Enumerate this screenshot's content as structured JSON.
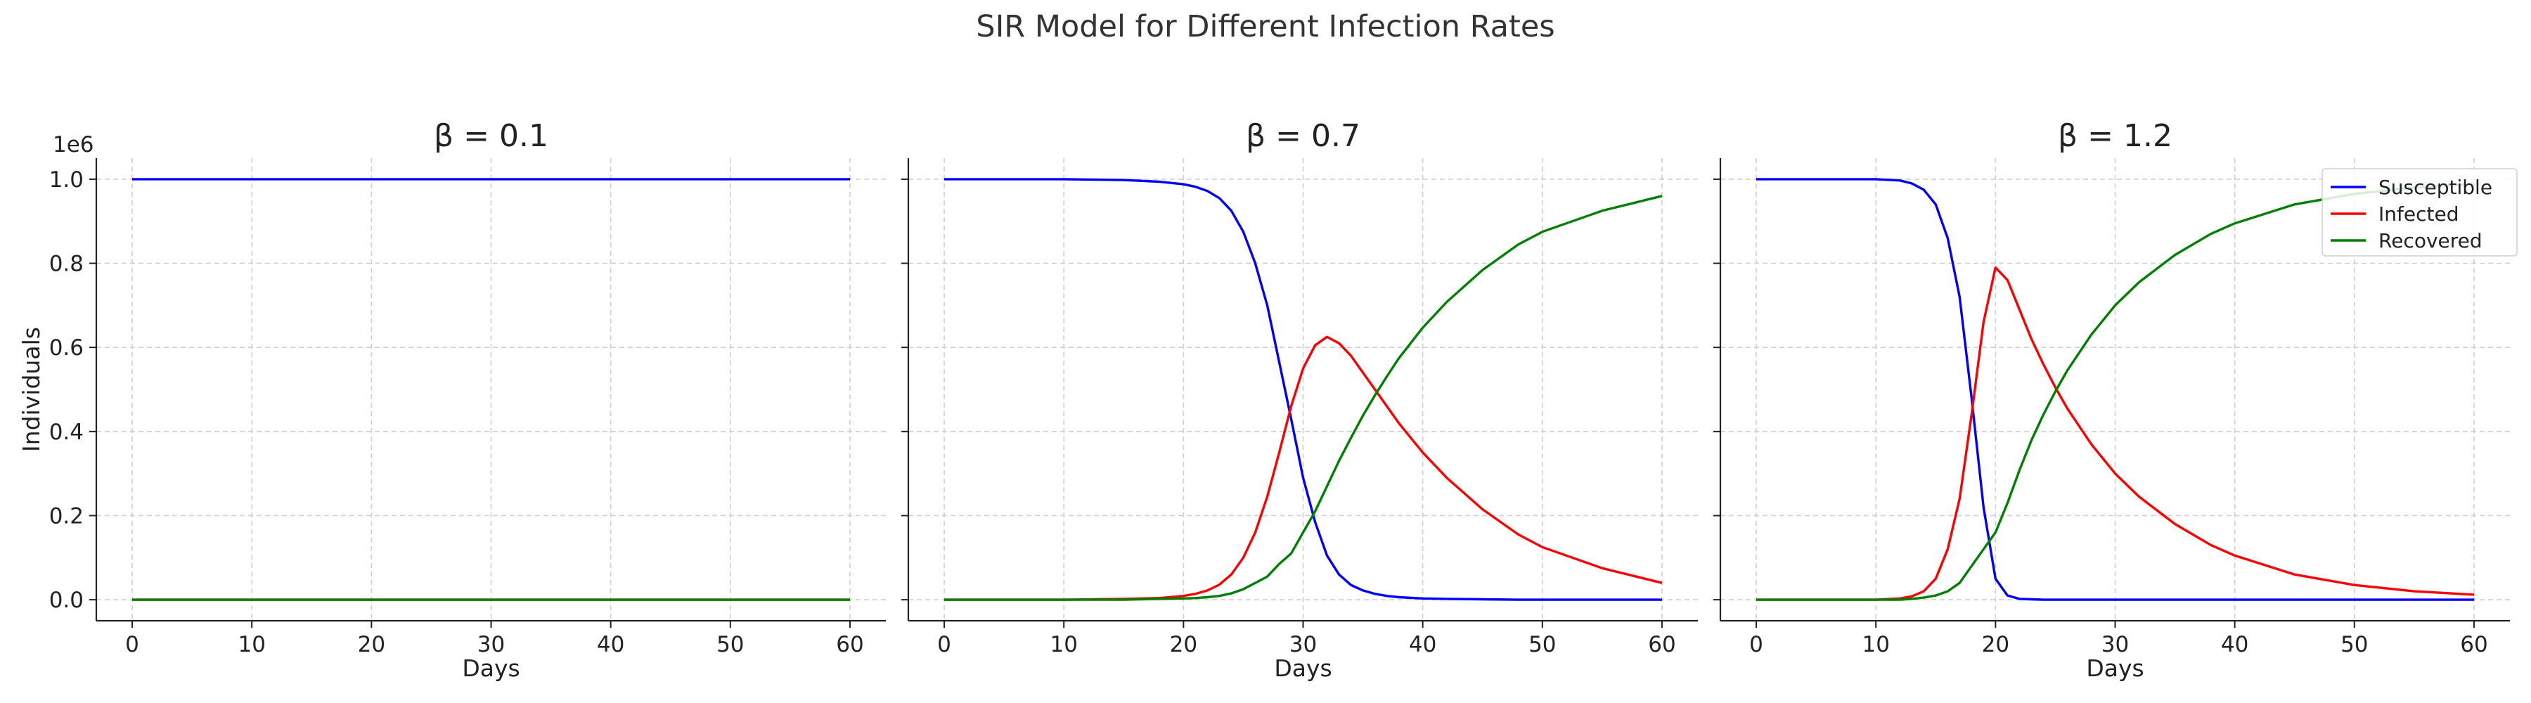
{
  "title": "SIR Model for Different Infection Rates",
  "y_scale_label": "1e6",
  "chart_data": {
    "type": "line",
    "title": "SIR Model for Different Infection Rates",
    "xlabel": "Days",
    "ylabel": "Individuals",
    "y_multiplier": "1e6",
    "xlim": [
      -3,
      63
    ],
    "ylim": [
      -0.05,
      1.05
    ],
    "xticks": [
      0,
      10,
      20,
      30,
      40,
      50,
      60
    ],
    "yticks": [
      0.0,
      0.2,
      0.4,
      0.6,
      0.8,
      1.0
    ],
    "ytick_labels": [
      "0.0",
      "0.2",
      "0.4",
      "0.6",
      "0.8",
      "1.0"
    ],
    "grid": true,
    "legend_position": "top-right",
    "legend": [
      "Susceptible",
      "Infected",
      "Recovered"
    ],
    "colors": {
      "Susceptible": "#0000ff",
      "Infected": "#ff0000",
      "Recovered": "#008000"
    },
    "panels": [
      {
        "title": "β = 0.1",
        "x": [
          0,
          60
        ],
        "series": [
          {
            "name": "Susceptible",
            "values": [
              1.0,
              1.0
            ]
          },
          {
            "name": "Infected",
            "values": [
              0.0,
              0.0
            ]
          },
          {
            "name": "Recovered",
            "values": [
              0.0,
              0.0
            ]
          }
        ]
      },
      {
        "title": "β = 0.7",
        "x": [
          0,
          10,
          15,
          18,
          20,
          21,
          22,
          23,
          24,
          25,
          26,
          27,
          28,
          29,
          30,
          31,
          32,
          33,
          34,
          35,
          36,
          37,
          38,
          40,
          42,
          45,
          48,
          50,
          55,
          60
        ],
        "series": [
          {
            "name": "Susceptible",
            "values": [
              1.0,
              1.0,
              0.998,
              0.994,
              0.988,
              0.982,
              0.972,
              0.955,
              0.925,
              0.875,
              0.8,
              0.7,
              0.565,
              0.43,
              0.29,
              0.185,
              0.105,
              0.06,
              0.035,
              0.022,
              0.014,
              0.009,
              0.006,
              0.003,
              0.002,
              0.001,
              0.0,
              0.0,
              0.0,
              0.0
            ]
          },
          {
            "name": "Infected",
            "values": [
              0.0,
              0.0,
              0.002,
              0.004,
              0.009,
              0.014,
              0.022,
              0.036,
              0.06,
              0.1,
              0.16,
              0.245,
              0.35,
              0.46,
              0.55,
              0.605,
              0.625,
              0.61,
              0.58,
              0.54,
              0.5,
              0.46,
              0.42,
              0.35,
              0.29,
              0.215,
              0.155,
              0.125,
              0.075,
              0.04
            ]
          },
          {
            "name": "Recovered",
            "values": [
              0.0,
              0.0,
              0.0,
              0.002,
              0.003,
              0.004,
              0.006,
              0.009,
              0.015,
              0.025,
              0.04,
              0.055,
              0.085,
              0.11,
              0.16,
              0.21,
              0.27,
              0.33,
              0.385,
              0.438,
              0.486,
              0.531,
              0.574,
              0.647,
              0.708,
              0.784,
              0.845,
              0.875,
              0.925,
              0.96
            ]
          }
        ]
      },
      {
        "title": "β = 1.2",
        "x": [
          0,
          10,
          12,
          13,
          14,
          15,
          16,
          17,
          18,
          19,
          20,
          21,
          22,
          23,
          24,
          25,
          26,
          28,
          30,
          32,
          35,
          38,
          40,
          45,
          50,
          55,
          60
        ],
        "series": [
          {
            "name": "Susceptible",
            "values": [
              1.0,
              1.0,
              0.997,
              0.99,
              0.975,
              0.94,
              0.86,
              0.72,
              0.48,
              0.22,
              0.05,
              0.01,
              0.002,
              0.001,
              0.0,
              0.0,
              0.0,
              0.0,
              0.0,
              0.0,
              0.0,
              0.0,
              0.0,
              0.0,
              0.0,
              0.0,
              0.0
            ]
          },
          {
            "name": "Infected",
            "values": [
              0.0,
              0.0,
              0.003,
              0.008,
              0.02,
              0.05,
              0.12,
              0.24,
              0.44,
              0.66,
              0.79,
              0.76,
              0.69,
              0.62,
              0.56,
              0.505,
              0.455,
              0.37,
              0.3,
              0.245,
              0.18,
              0.13,
              0.105,
              0.06,
              0.035,
              0.02,
              0.012
            ]
          },
          {
            "name": "Recovered",
            "values": [
              0.0,
              0.0,
              0.0,
              0.002,
              0.005,
              0.01,
              0.02,
              0.04,
              0.08,
              0.12,
              0.16,
              0.23,
              0.308,
              0.379,
              0.44,
              0.495,
              0.545,
              0.63,
              0.7,
              0.755,
              0.82,
              0.87,
              0.895,
              0.94,
              0.965,
              0.98,
              0.988
            ]
          }
        ]
      }
    ]
  }
}
